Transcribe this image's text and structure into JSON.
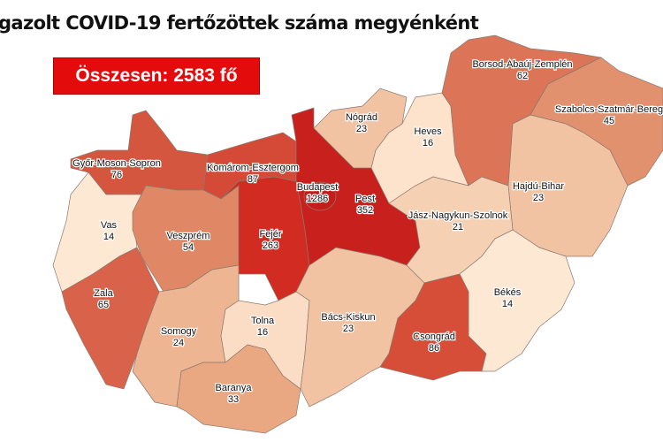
{
  "title": "gazolt COVID-19 fertőzöttek száma megyénként",
  "total": "Összesen: 2583 fő",
  "colors": {
    "total_box": "#e30b0b"
  },
  "counties": [
    {
      "id": "gyor",
      "name": "Győr-Moson-Sopron",
      "value": "76",
      "color": "#d4563f"
    },
    {
      "id": "komarom",
      "name": "Komárom-Esztergom",
      "value": "87",
      "color": "#d44a36"
    },
    {
      "id": "vas",
      "name": "Vas",
      "value": "14",
      "color": "#fde8d4"
    },
    {
      "id": "veszprem",
      "name": "Veszprém",
      "value": "54",
      "color": "#e08865"
    },
    {
      "id": "fejer",
      "name": "Fejér",
      "value": "263",
      "color": "#d12b22"
    },
    {
      "id": "zala",
      "name": "Zala",
      "value": "65",
      "color": "#d8634a"
    },
    {
      "id": "somogy",
      "name": "Somogy",
      "value": "24",
      "color": "#eeb592"
    },
    {
      "id": "tolna",
      "name": "Tolna",
      "value": "16",
      "color": "#fbdcc4"
    },
    {
      "id": "baranya",
      "name": "Baranya",
      "value": "33",
      "color": "#eaa882"
    },
    {
      "id": "bacs",
      "name": "Bács-Kiskun",
      "value": "23",
      "color": "#f2c3a3"
    },
    {
      "id": "pest",
      "name": "Pest",
      "value": "352",
      "color": "#c8201c"
    },
    {
      "id": "budapest",
      "name": "Budapest",
      "value": "1286",
      "color": "#c41e1a"
    },
    {
      "id": "nograd",
      "name": "Nógrád",
      "value": "23",
      "color": "#f2c3a3"
    },
    {
      "id": "heves",
      "name": "Heves",
      "value": "16",
      "color": "#fde3cc"
    },
    {
      "id": "borsod",
      "name": "Borsod-Abaúj-Zemplén",
      "value": "62",
      "color": "#dc7457"
    },
    {
      "id": "szabolcs",
      "name": "Szabolcs-Szatmár-Bereg",
      "value": "45",
      "color": "#e2916e"
    },
    {
      "id": "hajdu",
      "name": "Hajdú-Bihar",
      "value": "23",
      "color": "#f2c3a3"
    },
    {
      "id": "jasz",
      "name": "Jász-Nagykun-Szolnok",
      "value": "21",
      "color": "#f6d0b2"
    },
    {
      "id": "bekes",
      "name": "Békés",
      "value": "14",
      "color": "#fde8d4"
    },
    {
      "id": "csongrad",
      "name": "Csongrád",
      "value": "86",
      "color": "#d64d38"
    }
  ]
}
